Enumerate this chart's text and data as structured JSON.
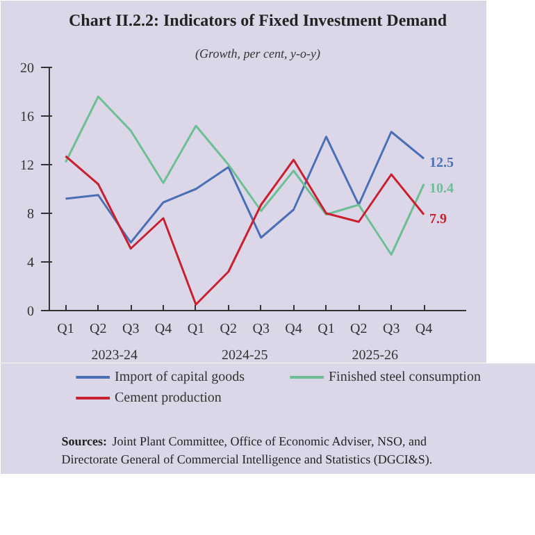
{
  "chart_data": {
    "type": "line",
    "title": "Chart II.2.2: Indicators of Fixed Investment Demand",
    "subtitle": "(Growth, per cent, y-o-y)",
    "categories": [
      "Q1",
      "Q2",
      "Q3",
      "Q4",
      "Q1",
      "Q2",
      "Q3",
      "Q4",
      "Q1",
      "Q2",
      "Q3",
      "Q4"
    ],
    "series": [
      {
        "name": "Import of capital goods",
        "color": "#4a6fb5",
        "values": [
          9.2,
          9.5,
          5.6,
          8.9,
          10.0,
          11.8,
          6.0,
          8.3,
          14.3,
          8.7,
          14.7,
          12.5
        ],
        "value_labels": [
          null,
          null,
          null,
          null,
          null,
          null,
          null,
          null,
          null,
          null,
          null,
          "12.5"
        ]
      },
      {
        "name": "Finished steel consumption",
        "color": "#6cbf94",
        "values": [
          12.2,
          17.6,
          14.8,
          10.5,
          15.2,
          12.0,
          8.2,
          11.5,
          7.9,
          8.7,
          4.6,
          10.4
        ],
        "value_labels": [
          null,
          null,
          null,
          null,
          null,
          null,
          null,
          null,
          null,
          null,
          null,
          "10.4"
        ]
      },
      {
        "name": "Cement production",
        "color": "#c8202f",
        "values": [
          12.7,
          10.4,
          5.1,
          7.6,
          0.5,
          3.2,
          8.7,
          12.4,
          8.0,
          7.3,
          11.2,
          7.9
        ],
        "value_labels": [
          null,
          null,
          null,
          null,
          null,
          null,
          null,
          null,
          null,
          null,
          null,
          "7.9"
        ]
      }
    ],
    "ylim": [
      0,
      20
    ],
    "yticks": [
      0,
      4,
      8,
      12,
      16,
      20
    ],
    "grid": false,
    "legend": "bottom",
    "marker": "none",
    "line_style": "solid",
    "annotations": [
      "2023-24",
      "2024-25",
      "2025-26",
      "Sources: Joint Plant Committee, Office of Economic Adviser, NSO, and Directorate General of Commercial Intelligence and Statistics (DGCI&S)."
    ]
  }
}
